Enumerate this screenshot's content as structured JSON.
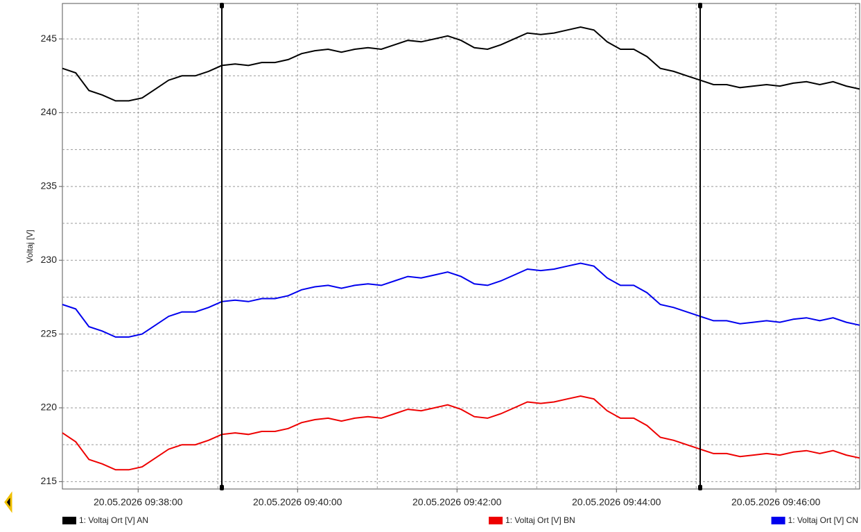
{
  "chart_data": {
    "type": "line",
    "y_label": "Voltaj [V]",
    "x": [
      "20.05.2026 09:37:03",
      "20.05.2026 09:37:13",
      "20.05.2026 09:37:23",
      "20.05.2026 09:37:33",
      "20.05.2026 09:37:43",
      "20.05.2026 09:37:53",
      "20.05.2026 09:38:03",
      "20.05.2026 09:38:13",
      "20.05.2026 09:38:23",
      "20.05.2026 09:38:33",
      "20.05.2026 09:38:43",
      "20.05.2026 09:38:53",
      "20.05.2026 09:39:03",
      "20.05.2026 09:39:13",
      "20.05.2026 09:39:23",
      "20.05.2026 09:39:33",
      "20.05.2026 09:39:43",
      "20.05.2026 09:39:53",
      "20.05.2026 09:40:03",
      "20.05.2026 09:40:13",
      "20.05.2026 09:40:23",
      "20.05.2026 09:40:33",
      "20.05.2026 09:40:43",
      "20.05.2026 09:40:53",
      "20.05.2026 09:41:03",
      "20.05.2026 09:41:13",
      "20.05.2026 09:41:23",
      "20.05.2026 09:41:33",
      "20.05.2026 09:41:43",
      "20.05.2026 09:41:53",
      "20.05.2026 09:42:03",
      "20.05.2026 09:42:13",
      "20.05.2026 09:42:23",
      "20.05.2026 09:42:33",
      "20.05.2026 09:42:43",
      "20.05.2026 09:42:53",
      "20.05.2026 09:43:03",
      "20.05.2026 09:43:13",
      "20.05.2026 09:43:23",
      "20.05.2026 09:43:33",
      "20.05.2026 09:43:43",
      "20.05.2026 09:43:53",
      "20.05.2026 09:44:03",
      "20.05.2026 09:44:13",
      "20.05.2026 09:44:23",
      "20.05.2026 09:44:33",
      "20.05.2026 09:44:43",
      "20.05.2026 09:44:53",
      "20.05.2026 09:45:03",
      "20.05.2026 09:45:13",
      "20.05.2026 09:45:23",
      "20.05.2026 09:45:33",
      "20.05.2026 09:45:43",
      "20.05.2026 09:45:53",
      "20.05.2026 09:46:03",
      "20.05.2026 09:46:13",
      "20.05.2026 09:46:23",
      "20.05.2026 09:46:33",
      "20.05.2026 09:46:43",
      "20.05.2026 09:46:53",
      "20.05.2026 09:47:03"
    ],
    "series": [
      {
        "name": "1: Voltaj Ort [V] AN",
        "color": "#000000",
        "values": [
          243.0,
          242.7,
          241.5,
          241.2,
          240.8,
          240.8,
          241.0,
          241.6,
          242.2,
          242.5,
          242.5,
          242.8,
          243.2,
          243.3,
          243.2,
          243.4,
          243.4,
          243.6,
          244.0,
          244.2,
          244.3,
          244.1,
          244.3,
          244.4,
          244.3,
          244.6,
          244.9,
          244.8,
          245.0,
          245.2,
          244.9,
          244.4,
          244.3,
          244.6,
          245.0,
          245.4,
          245.3,
          245.4,
          245.6,
          245.8,
          245.6,
          244.8,
          244.3,
          244.3,
          243.8,
          243.0,
          242.8,
          242.5,
          242.2,
          241.9,
          241.9,
          241.7,
          241.8,
          241.9,
          241.8,
          242.0,
          242.1,
          241.9,
          242.1,
          241.8,
          241.6
        ]
      },
      {
        "name": "1: Voltaj Ort [V] BN",
        "color": "#ee0000",
        "values": [
          218.3,
          217.7,
          216.5,
          216.2,
          215.8,
          215.8,
          216.0,
          216.6,
          217.2,
          217.5,
          217.5,
          217.8,
          218.2,
          218.3,
          218.2,
          218.4,
          218.4,
          218.6,
          219.0,
          219.2,
          219.3,
          219.1,
          219.3,
          219.4,
          219.3,
          219.6,
          219.9,
          219.8,
          220.0,
          220.2,
          219.9,
          219.4,
          219.3,
          219.6,
          220.0,
          220.4,
          220.3,
          220.4,
          220.6,
          220.8,
          220.6,
          219.8,
          219.3,
          219.3,
          218.8,
          218.0,
          217.8,
          217.5,
          217.2,
          216.9,
          216.9,
          216.7,
          216.8,
          216.9,
          216.8,
          217.0,
          217.1,
          216.9,
          217.1,
          216.8,
          216.6
        ]
      },
      {
        "name": "1: Voltaj Ort [V] CN",
        "color": "#0000ee",
        "values": [
          227.0,
          226.7,
          225.5,
          225.2,
          224.8,
          224.8,
          225.0,
          225.6,
          226.2,
          226.5,
          226.5,
          226.8,
          227.2,
          227.3,
          227.2,
          227.4,
          227.4,
          227.6,
          228.0,
          228.2,
          228.3,
          228.1,
          228.3,
          228.4,
          228.3,
          228.6,
          228.9,
          228.8,
          229.0,
          229.2,
          228.9,
          228.4,
          228.3,
          228.6,
          229.0,
          229.4,
          229.3,
          229.4,
          229.6,
          229.8,
          229.6,
          228.8,
          228.3,
          228.3,
          227.8,
          227.0,
          226.8,
          226.5,
          226.2,
          225.9,
          225.9,
          225.7,
          225.8,
          225.9,
          225.8,
          226.0,
          226.1,
          225.9,
          226.1,
          225.8,
          225.6
        ]
      }
    ],
    "xlim": [
      "20.05.2026 09:37:03",
      "20.05.2026 09:47:03"
    ],
    "xticks": [
      "20.05.2026 09:38:00",
      "20.05.2026 09:40:00",
      "20.05.2026 09:42:00",
      "20.05.2026 09:44:00",
      "20.05.2026 09:46:00"
    ],
    "ylim": [
      214.5,
      247.4
    ],
    "yticks": [
      215,
      220,
      225,
      230,
      235,
      240,
      245
    ],
    "cursors": [
      "20.05.2026 09:39:03",
      "20.05.2026 09:45:03"
    ],
    "grid": true,
    "minor_grid": true,
    "legend": "bottom"
  }
}
